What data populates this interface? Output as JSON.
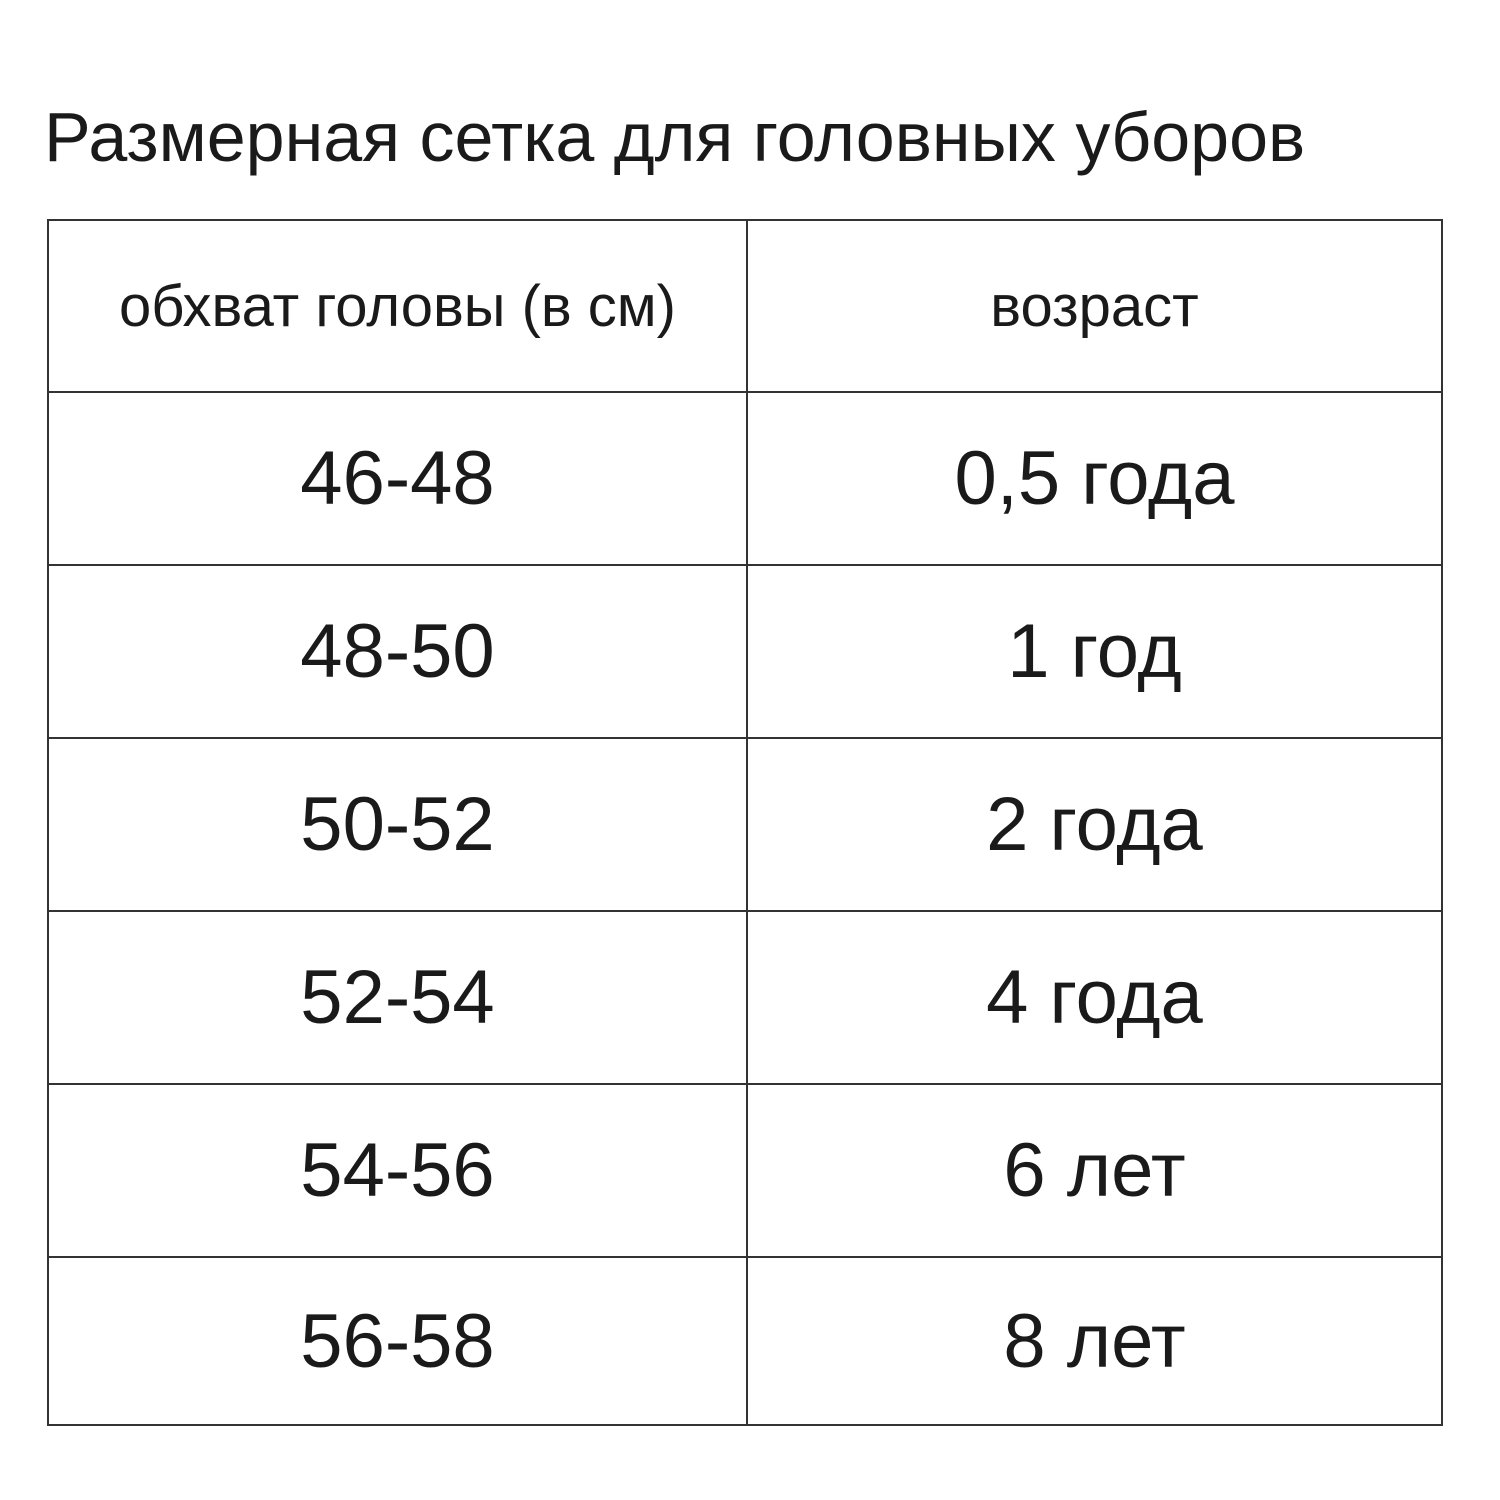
{
  "title": "Размерная сетка для головных уборов",
  "table": {
    "headers": [
      "обхват головы (в см)",
      "возраст"
    ],
    "rows": [
      [
        "46-48",
        "0,5 года"
      ],
      [
        "48-50",
        "1 год"
      ],
      [
        "50-52",
        "2 года"
      ],
      [
        "52-54",
        "4 года"
      ],
      [
        "54-56",
        "6 лет"
      ],
      [
        "56-58",
        "8 лет"
      ]
    ]
  },
  "colors": {
    "text": "#1a1a1a",
    "border": "#333333",
    "background": "#ffffff"
  }
}
